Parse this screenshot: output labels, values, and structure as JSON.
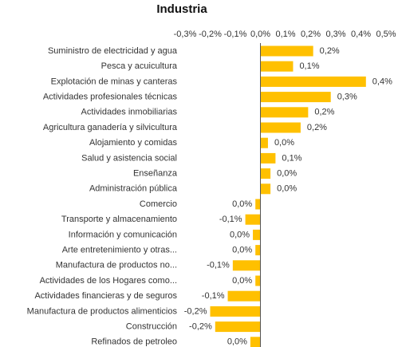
{
  "chart_data": {
    "type": "barh",
    "title": "Industria",
    "categories": [
      "Suministro de electricidad y agua",
      "Pesca y acuicultura",
      "Explotación de minas y canteras",
      "Actividades profesionales técnicas",
      "Actividades inmobiliarias",
      "Agricultura  ganadería y silvicultura",
      "Alojamiento y comidas",
      "Salud y asistencia social",
      "Enseñanza",
      "Administración pública",
      "Comercio",
      "Transporte y almacenamiento",
      "Información y comunicación",
      "Arte entretenimiento y otras...",
      "Manufactura de productos no...",
      "Actividades de los Hogares como...",
      "Actividades financieras y de seguros",
      "Manufactura de productos alimenticios",
      "Construcción",
      "Refinados de petroleo"
    ],
    "values": [
      0.21,
      0.13,
      0.42,
      0.28,
      0.19,
      0.16,
      0.03,
      0.06,
      0.04,
      0.04,
      -0.02,
      -0.06,
      -0.03,
      -0.02,
      -0.11,
      -0.02,
      -0.13,
      -0.2,
      -0.18,
      -0.04
    ],
    "value_labels": [
      "0,2%",
      "0,1%",
      "0,4%",
      "0,3%",
      "0,2%",
      "0,2%",
      "0,0%",
      "0,1%",
      "0,0%",
      "0,0%",
      "0,0%",
      "-0,1%",
      "0,0%",
      "0,0%",
      "-0,1%",
      "0,0%",
      "-0,1%",
      "-0,2%",
      "-0,2%",
      "0,0%"
    ],
    "color": "#ffc000",
    "xlim": [
      -0.3,
      0.5
    ],
    "xticks": [
      {
        "value": -0.3,
        "label": "-0,3%"
      },
      {
        "value": -0.2,
        "label": "-0,2%"
      },
      {
        "value": -0.1,
        "label": "-0,1%"
      },
      {
        "value": 0,
        "label": "0,0%"
      },
      {
        "value": 0.1,
        "label": "0,1%"
      },
      {
        "value": 0.2,
        "label": "0,2%"
      },
      {
        "value": 0.3,
        "label": "0,3%"
      },
      {
        "value": 0.4,
        "label": "0,4%"
      },
      {
        "value": 0.5,
        "label": "0,5%"
      }
    ]
  }
}
